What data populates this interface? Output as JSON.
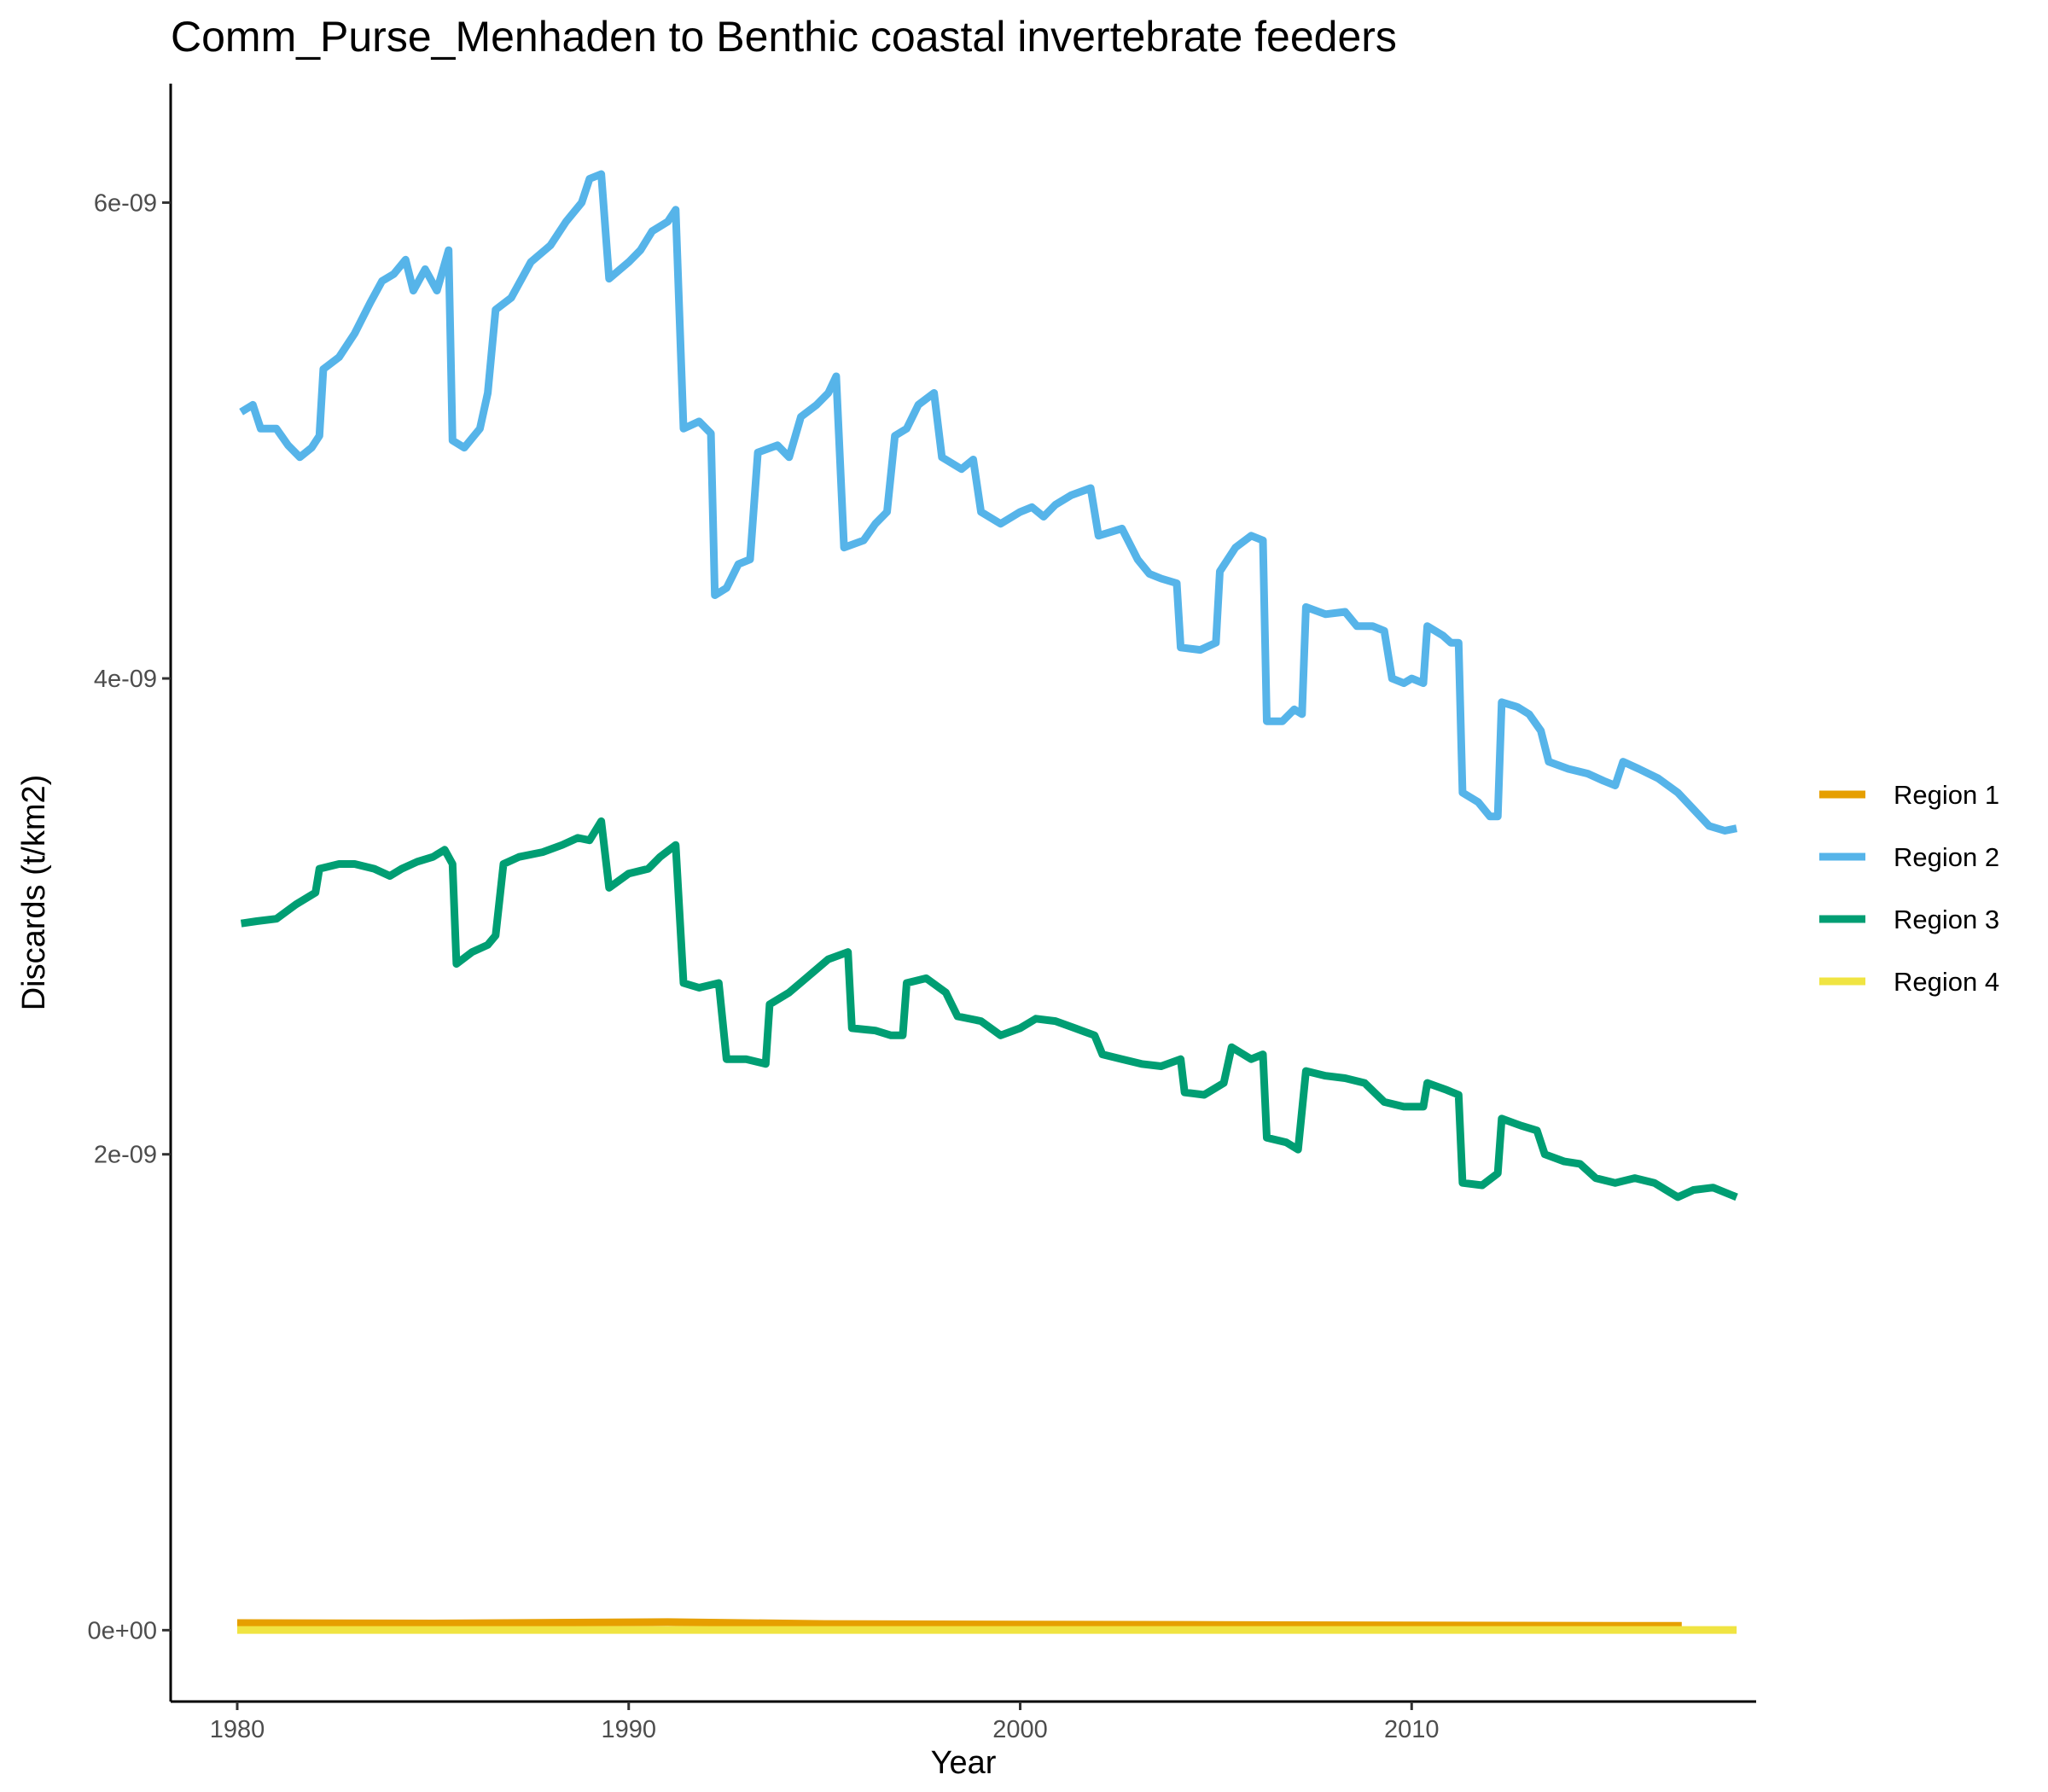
{
  "chart_data": {
    "type": "line",
    "title": "Comm_Purse_Menhaden to Benthic coastal invertebrate feeders",
    "xlabel": "Year",
    "ylabel": "Discards (t/km2)",
    "xlim": [
      1978.3,
      2018.8
    ],
    "ylim": [
      -3e-10,
      6.5e-09
    ],
    "x_ticks": [
      1980,
      1990,
      2000,
      2010
    ],
    "x_tick_labels": [
      "1980",
      "1990",
      "2000",
      "2010"
    ],
    "y_ticks": [
      0,
      2e-09,
      4e-09,
      6e-09
    ],
    "y_tick_labels": [
      "0e+00",
      "2e-09",
      "4e-09",
      "6e-09"
    ],
    "grid": false,
    "legend_position": "right",
    "series": [
      {
        "name": "Region 1",
        "color": "#E69F00",
        "points": [
          [
            1980.0,
            3e-11
          ],
          [
            1985.0,
            2.8e-11
          ],
          [
            1989.0,
            3.2e-11
          ],
          [
            1991.0,
            3.4e-11
          ],
          [
            1995.0,
            2.6e-11
          ],
          [
            2000.0,
            2.4e-11
          ],
          [
            2005.0,
            2.2e-11
          ],
          [
            2010.0,
            2e-11
          ],
          [
            2016.9,
            1.8e-11
          ]
        ]
      },
      {
        "name": "Region 2",
        "color": "#56B4E9",
        "points": [
          [
            1980.1,
            5.12e-09
          ],
          [
            1980.4,
            5.15e-09
          ],
          [
            1980.6,
            5.05e-09
          ],
          [
            1981.0,
            5.05e-09
          ],
          [
            1981.3,
            4.98e-09
          ],
          [
            1981.6,
            4.93e-09
          ],
          [
            1981.9,
            4.97e-09
          ],
          [
            1982.1,
            5.02e-09
          ],
          [
            1982.2,
            5.3e-09
          ],
          [
            1982.6,
            5.35e-09
          ],
          [
            1983.0,
            5.45e-09
          ],
          [
            1983.4,
            5.58e-09
          ],
          [
            1983.7,
            5.67e-09
          ],
          [
            1984.0,
            5.7e-09
          ],
          [
            1984.3,
            5.76e-09
          ],
          [
            1984.5,
            5.63e-09
          ],
          [
            1984.8,
            5.72e-09
          ],
          [
            1985.1,
            5.63e-09
          ],
          [
            1985.4,
            5.8e-09
          ],
          [
            1985.5,
            5e-09
          ],
          [
            1985.8,
            4.97e-09
          ],
          [
            1986.2,
            5.05e-09
          ],
          [
            1986.4,
            5.2e-09
          ],
          [
            1986.6,
            5.55e-09
          ],
          [
            1987.0,
            5.6e-09
          ],
          [
            1987.5,
            5.75e-09
          ],
          [
            1988.0,
            5.82e-09
          ],
          [
            1988.4,
            5.92e-09
          ],
          [
            1988.8,
            6e-09
          ],
          [
            1989.0,
            6.1e-09
          ],
          [
            1989.3,
            6.12e-09
          ],
          [
            1989.5,
            5.68e-09
          ],
          [
            1990.0,
            5.75e-09
          ],
          [
            1990.3,
            5.8e-09
          ],
          [
            1990.6,
            5.88e-09
          ],
          [
            1991.0,
            5.92e-09
          ],
          [
            1991.2,
            5.97e-09
          ],
          [
            1991.4,
            5.05e-09
          ],
          [
            1991.8,
            5.08e-09
          ],
          [
            1992.1,
            5.03e-09
          ],
          [
            1992.2,
            4.35e-09
          ],
          [
            1992.5,
            4.38e-09
          ],
          [
            1992.8,
            4.48e-09
          ],
          [
            1993.1,
            4.5e-09
          ],
          [
            1993.3,
            4.95e-09
          ],
          [
            1993.8,
            4.98e-09
          ],
          [
            1994.1,
            4.93e-09
          ],
          [
            1994.4,
            5.1e-09
          ],
          [
            1994.8,
            5.15e-09
          ],
          [
            1995.1,
            5.2e-09
          ],
          [
            1995.3,
            5.27e-09
          ],
          [
            1995.5,
            4.55e-09
          ],
          [
            1996.0,
            4.58e-09
          ],
          [
            1996.3,
            4.65e-09
          ],
          [
            1996.6,
            4.7e-09
          ],
          [
            1996.8,
            5.02e-09
          ],
          [
            1997.1,
            5.05e-09
          ],
          [
            1997.4,
            5.15e-09
          ],
          [
            1997.8,
            5.2e-09
          ],
          [
            1998.0,
            4.93e-09
          ],
          [
            1998.5,
            4.88e-09
          ],
          [
            1998.8,
            4.92e-09
          ],
          [
            1999.0,
            4.7e-09
          ],
          [
            1999.5,
            4.65e-09
          ],
          [
            2000.0,
            4.7e-09
          ],
          [
            2000.3,
            4.72e-09
          ],
          [
            2000.6,
            4.68e-09
          ],
          [
            2000.9,
            4.73e-09
          ],
          [
            2001.3,
            4.77e-09
          ],
          [
            2001.8,
            4.8e-09
          ],
          [
            2002.0,
            4.6e-09
          ],
          [
            2002.6,
            4.63e-09
          ],
          [
            2003.0,
            4.5e-09
          ],
          [
            2003.3,
            4.44e-09
          ],
          [
            2003.6,
            4.42e-09
          ],
          [
            2004.0,
            4.4e-09
          ],
          [
            2004.1,
            4.13e-09
          ],
          [
            2004.6,
            4.12e-09
          ],
          [
            2005.0,
            4.15e-09
          ],
          [
            2005.1,
            4.45e-09
          ],
          [
            2005.5,
            4.55e-09
          ],
          [
            2005.9,
            4.6e-09
          ],
          [
            2006.2,
            4.58e-09
          ],
          [
            2006.3,
            3.82e-09
          ],
          [
            2006.7,
            3.82e-09
          ],
          [
            2007.0,
            3.87e-09
          ],
          [
            2007.2,
            3.85e-09
          ],
          [
            2007.3,
            4.3e-09
          ],
          [
            2007.8,
            4.27e-09
          ],
          [
            2008.3,
            4.28e-09
          ],
          [
            2008.6,
            4.22e-09
          ],
          [
            2009.0,
            4.22e-09
          ],
          [
            2009.3,
            4.2e-09
          ],
          [
            2009.5,
            4e-09
          ],
          [
            2009.8,
            3.98e-09
          ],
          [
            2010.0,
            4e-09
          ],
          [
            2010.3,
            3.98e-09
          ],
          [
            2010.4,
            4.22e-09
          ],
          [
            2010.8,
            4.18e-09
          ],
          [
            2011.0,
            4.15e-09
          ],
          [
            2011.2,
            4.15e-09
          ],
          [
            2011.3,
            3.52e-09
          ],
          [
            2011.7,
            3.48e-09
          ],
          [
            2012.0,
            3.42e-09
          ],
          [
            2012.2,
            3.42e-09
          ],
          [
            2012.3,
            3.9e-09
          ],
          [
            2012.7,
            3.88e-09
          ],
          [
            2013.0,
            3.85e-09
          ],
          [
            2013.3,
            3.78e-09
          ],
          [
            2013.5,
            3.65e-09
          ],
          [
            2014.0,
            3.62e-09
          ],
          [
            2014.5,
            3.6e-09
          ],
          [
            2014.9,
            3.57e-09
          ],
          [
            2015.2,
            3.55e-09
          ],
          [
            2015.4,
            3.65e-09
          ],
          [
            2015.8,
            3.62e-09
          ],
          [
            2016.3,
            3.58e-09
          ],
          [
            2016.8,
            3.52e-09
          ],
          [
            2017.2,
            3.45e-09
          ],
          [
            2017.6,
            3.38e-09
          ],
          [
            2018.0,
            3.36e-09
          ],
          [
            2018.3,
            3.37e-09
          ]
        ]
      },
      {
        "name": "Region 3",
        "color": "#009E73",
        "points": [
          [
            1980.1,
            2.97e-09
          ],
          [
            1980.5,
            2.98e-09
          ],
          [
            1981.0,
            2.99e-09
          ],
          [
            1981.5,
            3.05e-09
          ],
          [
            1982.0,
            3.1e-09
          ],
          [
            1982.1,
            3.2e-09
          ],
          [
            1982.6,
            3.22e-09
          ],
          [
            1983.0,
            3.22e-09
          ],
          [
            1983.5,
            3.2e-09
          ],
          [
            1983.9,
            3.17e-09
          ],
          [
            1984.2,
            3.2e-09
          ],
          [
            1984.6,
            3.23e-09
          ],
          [
            1985.0,
            3.25e-09
          ],
          [
            1985.3,
            3.28e-09
          ],
          [
            1985.5,
            3.22e-09
          ],
          [
            1985.6,
            2.8e-09
          ],
          [
            1986.0,
            2.85e-09
          ],
          [
            1986.4,
            2.88e-09
          ],
          [
            1986.6,
            2.92e-09
          ],
          [
            1986.8,
            3.22e-09
          ],
          [
            1987.2,
            3.25e-09
          ],
          [
            1987.8,
            3.27e-09
          ],
          [
            1988.3,
            3.3e-09
          ],
          [
            1988.7,
            3.33e-09
          ],
          [
            1989.0,
            3.32e-09
          ],
          [
            1989.3,
            3.4e-09
          ],
          [
            1989.5,
            3.12e-09
          ],
          [
            1990.0,
            3.18e-09
          ],
          [
            1990.5,
            3.2e-09
          ],
          [
            1990.8,
            3.25e-09
          ],
          [
            1991.2,
            3.3e-09
          ],
          [
            1991.4,
            2.72e-09
          ],
          [
            1991.8,
            2.7e-09
          ],
          [
            1992.3,
            2.72e-09
          ],
          [
            1992.5,
            2.4e-09
          ],
          [
            1993.0,
            2.4e-09
          ],
          [
            1993.5,
            2.38e-09
          ],
          [
            1993.6,
            2.63e-09
          ],
          [
            1994.1,
            2.68e-09
          ],
          [
            1994.6,
            2.75e-09
          ],
          [
            1995.1,
            2.82e-09
          ],
          [
            1995.6,
            2.85e-09
          ],
          [
            1995.7,
            2.53e-09
          ],
          [
            1996.3,
            2.52e-09
          ],
          [
            1996.7,
            2.5e-09
          ],
          [
            1997.0,
            2.5e-09
          ],
          [
            1997.1,
            2.72e-09
          ],
          [
            1997.6,
            2.74e-09
          ],
          [
            1998.1,
            2.68e-09
          ],
          [
            1998.4,
            2.58e-09
          ],
          [
            1999.0,
            2.56e-09
          ],
          [
            1999.5,
            2.5e-09
          ],
          [
            2000.0,
            2.53e-09
          ],
          [
            2000.4,
            2.57e-09
          ],
          [
            2000.9,
            2.56e-09
          ],
          [
            2001.4,
            2.53e-09
          ],
          [
            2001.9,
            2.5e-09
          ],
          [
            2002.1,
            2.42e-09
          ],
          [
            2002.6,
            2.4e-09
          ],
          [
            2003.1,
            2.38e-09
          ],
          [
            2003.6,
            2.37e-09
          ],
          [
            2004.1,
            2.4e-09
          ],
          [
            2004.2,
            2.26e-09
          ],
          [
            2004.7,
            2.25e-09
          ],
          [
            2005.2,
            2.3e-09
          ],
          [
            2005.4,
            2.45e-09
          ],
          [
            2005.9,
            2.4e-09
          ],
          [
            2006.2,
            2.42e-09
          ],
          [
            2006.3,
            2.07e-09
          ],
          [
            2006.8,
            2.05e-09
          ],
          [
            2007.1,
            2.02e-09
          ],
          [
            2007.3,
            2.35e-09
          ],
          [
            2007.8,
            2.33e-09
          ],
          [
            2008.3,
            2.32e-09
          ],
          [
            2008.8,
            2.3e-09
          ],
          [
            2009.3,
            2.22e-09
          ],
          [
            2009.8,
            2.2e-09
          ],
          [
            2010.3,
            2.2e-09
          ],
          [
            2010.4,
            2.3e-09
          ],
          [
            2010.9,
            2.27e-09
          ],
          [
            2011.2,
            2.25e-09
          ],
          [
            2011.3,
            1.88e-09
          ],
          [
            2011.8,
            1.87e-09
          ],
          [
            2012.2,
            1.92e-09
          ],
          [
            2012.3,
            2.15e-09
          ],
          [
            2012.8,
            2.12e-09
          ],
          [
            2013.2,
            2.1e-09
          ],
          [
            2013.4,
            2e-09
          ],
          [
            2013.9,
            1.97e-09
          ],
          [
            2014.3,
            1.96e-09
          ],
          [
            2014.7,
            1.9e-09
          ],
          [
            2015.2,
            1.88e-09
          ],
          [
            2015.7,
            1.9e-09
          ],
          [
            2016.2,
            1.88e-09
          ],
          [
            2016.8,
            1.82e-09
          ],
          [
            2017.2,
            1.85e-09
          ],
          [
            2017.7,
            1.86e-09
          ],
          [
            2018.3,
            1.82e-09
          ]
        ]
      },
      {
        "name": "Region 4",
        "color": "#F0E442",
        "points": [
          [
            1980.0,
            1e-12
          ],
          [
            1990.0,
            1e-12
          ],
          [
            2000.0,
            1e-12
          ],
          [
            2010.0,
            1e-12
          ],
          [
            2018.3,
            1e-12
          ]
        ]
      }
    ]
  }
}
